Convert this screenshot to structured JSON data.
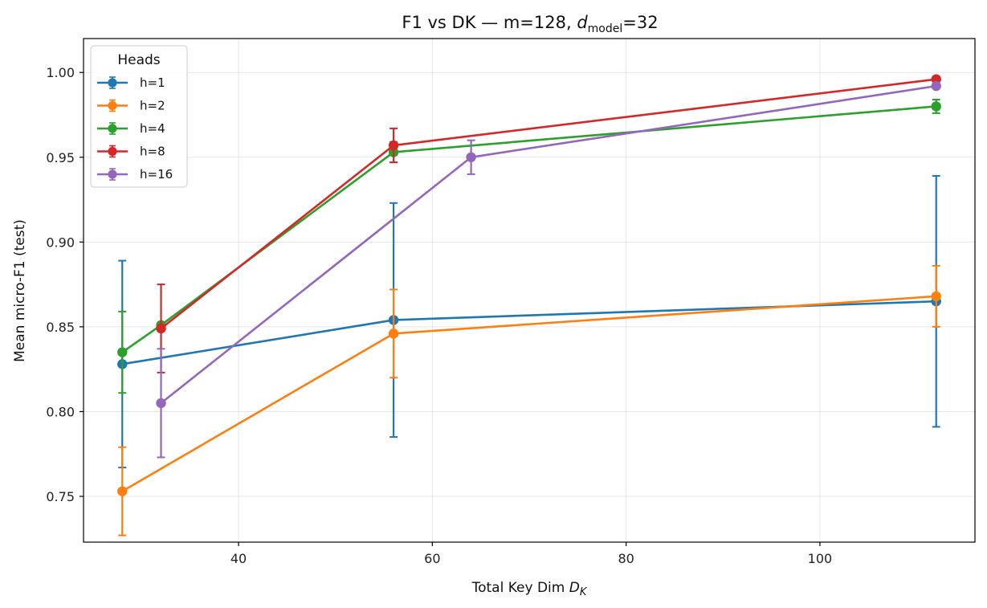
{
  "chart_data": {
    "type": "line",
    "title": "F1 vs DK — m=128, ",
    "title_math_var": "d",
    "title_math_sub": "model",
    "title_suffix": "=32",
    "xlabel": "Total Key Dim ",
    "xlabel_math_var": "D",
    "xlabel_math_sub": "K",
    "ylabel": "Mean micro-F1 (test)",
    "xlim": [
      24,
      116
    ],
    "ylim": [
      0.723,
      1.02
    ],
    "xticks": [
      40,
      60,
      80,
      100
    ],
    "xtick_labels": [
      "40",
      "60",
      "80",
      "100"
    ],
    "yticks": [
      0.75,
      0.8,
      0.85,
      0.9,
      0.95,
      1.0
    ],
    "ytick_labels": [
      "0.75",
      "0.80",
      "0.85",
      "0.90",
      "0.95",
      "1.00"
    ],
    "grid": true,
    "legend_title": "Heads",
    "legend_position": "top-left",
    "series": [
      {
        "name": "h=1",
        "color": "#1f77b4",
        "x": [
          28,
          56,
          112
        ],
        "y": [
          0.828,
          0.854,
          0.865
        ],
        "err": [
          0.061,
          0.069,
          0.074
        ]
      },
      {
        "name": "h=2",
        "color": "#ff7f0e",
        "x": [
          28,
          56,
          112
        ],
        "y": [
          0.753,
          0.846,
          0.868
        ],
        "err": [
          0.026,
          0.026,
          0.018
        ]
      },
      {
        "name": "h=4",
        "color": "#2ca02c",
        "x": [
          28,
          32,
          56,
          112
        ],
        "y": [
          0.835,
          0.851,
          0.953,
          0.98
        ],
        "err": [
          0.024,
          0.0,
          0.006,
          0.004
        ]
      },
      {
        "name": "h=8",
        "color": "#d62728",
        "x": [
          32,
          56,
          112
        ],
        "y": [
          0.849,
          0.957,
          0.996
        ],
        "err": [
          0.026,
          0.01,
          0.0
        ]
      },
      {
        "name": "h=16",
        "color": "#9467bd",
        "x": [
          32,
          64,
          112
        ],
        "y": [
          0.805,
          0.95,
          0.992
        ],
        "err": [
          0.032,
          0.01,
          0.0
        ]
      }
    ]
  }
}
